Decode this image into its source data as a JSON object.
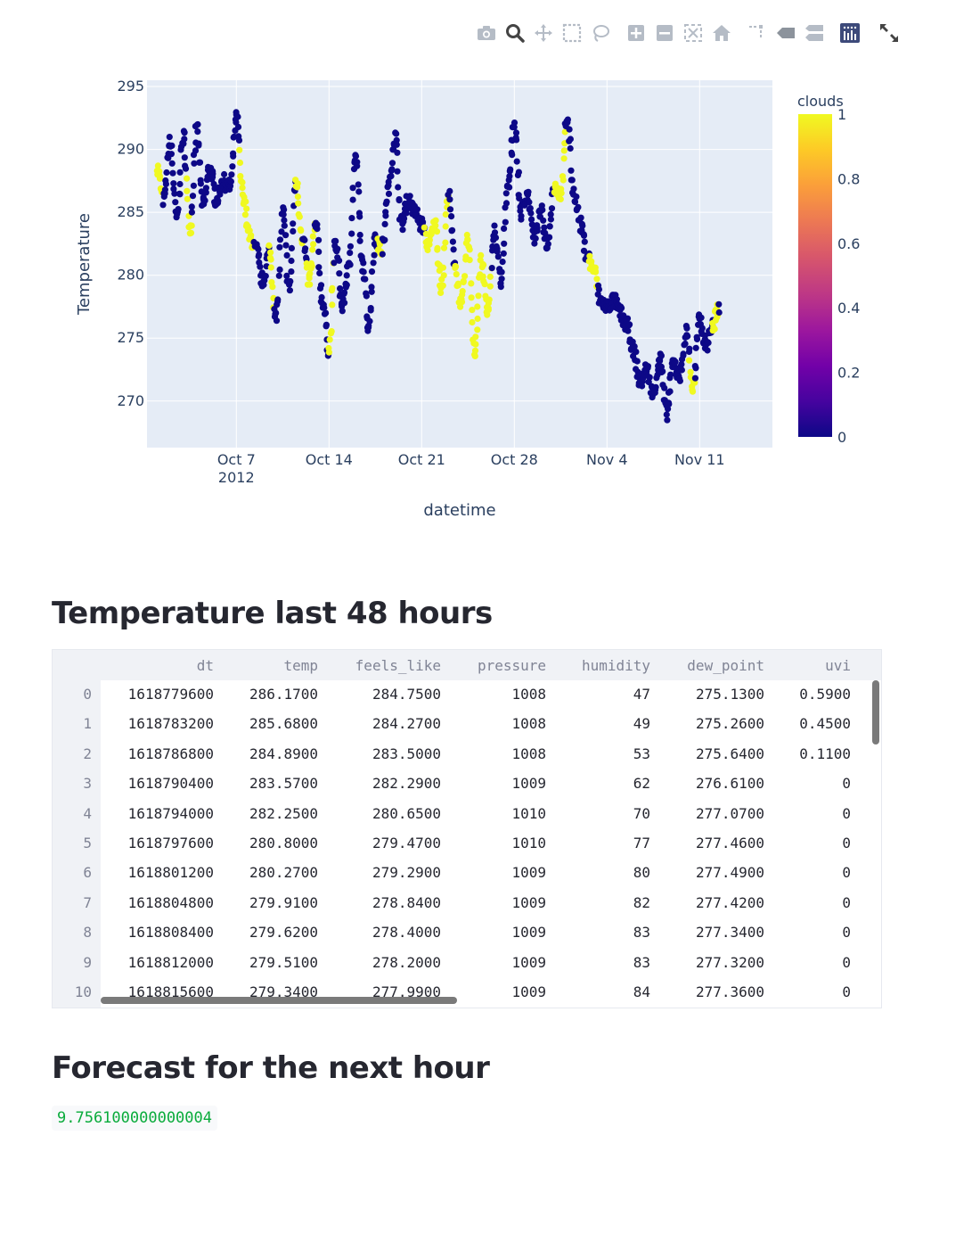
{
  "modebar": {
    "icons": [
      "camera-icon",
      "zoom-icon",
      "pan-icon",
      "box-select-icon",
      "lasso-icon",
      "zoom-in-icon",
      "zoom-out-icon",
      "autoscale-icon",
      "reset-axes-icon",
      "spike-lines-icon",
      "hover-closest-icon",
      "hover-compare-icon",
      "plotly-logo",
      "fullscreen-icon"
    ]
  },
  "chart_data": {
    "type": "scatter",
    "xlabel": "datetime",
    "ylabel": "Temperature",
    "colorbar_title": "clouds",
    "colorbar_ticks": [
      "0",
      "0.2",
      "0.4",
      "0.6",
      "0.8",
      "1"
    ],
    "x_ticks": [
      {
        "label": "Oct 7",
        "sub": "2012",
        "date": "2012-10-07"
      },
      {
        "label": "Oct 14",
        "sub": "",
        "date": "2012-10-14"
      },
      {
        "label": "Oct 21",
        "sub": "",
        "date": "2012-10-21"
      },
      {
        "label": "Oct 28",
        "sub": "",
        "date": "2012-10-28"
      },
      {
        "label": "Nov 4",
        "sub": "",
        "date": "2012-11-04"
      },
      {
        "label": "Nov 11",
        "sub": "",
        "date": "2012-11-11"
      }
    ],
    "y_ticks": [
      270,
      275,
      280,
      285,
      290,
      295
    ],
    "xlim": [
      "2012-09-30T06:00",
      "2012-11-16T12:00"
    ],
    "ylim": [
      266.3,
      295.5
    ],
    "colorscale": "plasma",
    "grid": true,
    "legend": "right",
    "profile": [
      [
        "2012-10-01T00:00",
        288.6
      ],
      [
        "2012-10-01T12:00",
        286.0
      ],
      [
        "2012-10-02T00:00",
        290.5
      ],
      [
        "2012-10-02T12:00",
        284.5
      ],
      [
        "2012-10-03T00:00",
        291.0
      ],
      [
        "2012-10-03T12:00",
        283.8
      ],
      [
        "2012-10-04T00:00",
        291.5
      ],
      [
        "2012-10-04T12:00",
        285.5
      ],
      [
        "2012-10-05T00:00",
        288.5
      ],
      [
        "2012-10-05T12:00",
        286.0
      ],
      [
        "2012-10-06T00:00",
        287.5
      ],
      [
        "2012-10-06T12:00",
        287.0
      ],
      [
        "2012-10-07T00:00",
        292.5
      ],
      [
        "2012-10-07T12:00",
        286.5
      ],
      [
        "2012-10-08T00:00",
        283.0
      ],
      [
        "2012-10-08T12:00",
        282.0
      ],
      [
        "2012-10-09T00:00",
        279.5
      ],
      [
        "2012-10-09T12:00",
        282.0
      ],
      [
        "2012-10-10T00:00",
        276.5
      ],
      [
        "2012-10-10T12:00",
        285.0
      ],
      [
        "2012-10-11T00:00",
        279.0
      ],
      [
        "2012-10-11T12:00",
        287.5
      ],
      [
        "2012-10-12T00:00",
        283.0
      ],
      [
        "2012-10-12T12:00",
        279.5
      ],
      [
        "2012-10-13T00:00",
        284.0
      ],
      [
        "2012-10-13T12:00",
        278.0
      ],
      [
        "2012-10-14T00:00",
        274.0
      ],
      [
        "2012-10-14T12:00",
        282.5
      ],
      [
        "2012-10-15T00:00",
        277.5
      ],
      [
        "2012-10-15T12:00",
        280.5
      ],
      [
        "2012-10-16T00:00",
        289.5
      ],
      [
        "2012-10-16T12:00",
        281.0
      ],
      [
        "2012-10-17T00:00",
        276.0
      ],
      [
        "2012-10-17T12:00",
        283.0
      ],
      [
        "2012-10-18T00:00",
        282.0
      ],
      [
        "2012-10-18T12:00",
        287.0
      ],
      [
        "2012-10-19T00:00",
        291.0
      ],
      [
        "2012-10-19T12:00",
        284.0
      ],
      [
        "2012-10-20T00:00",
        286.0
      ],
      [
        "2012-10-20T12:00",
        285.0
      ],
      [
        "2012-10-21T00:00",
        284.0
      ],
      [
        "2012-10-21T12:00",
        282.5
      ],
      [
        "2012-10-22T00:00",
        284.0
      ],
      [
        "2012-10-22T12:00",
        279.0
      ],
      [
        "2012-10-23T00:00",
        286.5
      ],
      [
        "2012-10-23T12:00",
        281.0
      ],
      [
        "2012-10-24T00:00",
        277.5
      ],
      [
        "2012-10-24T12:00",
        283.0
      ],
      [
        "2012-10-25T00:00",
        274.0
      ],
      [
        "2012-10-25T12:00",
        281.0
      ],
      [
        "2012-10-26T00:00",
        277.0
      ],
      [
        "2012-10-26T12:00",
        283.5
      ],
      [
        "2012-10-27T00:00",
        279.5
      ],
      [
        "2012-10-27T12:00",
        287.0
      ],
      [
        "2012-10-28T00:00",
        292.0
      ],
      [
        "2012-10-28T12:00",
        285.0
      ],
      [
        "2012-10-29T00:00",
        286.5
      ],
      [
        "2012-10-29T12:00",
        283.0
      ],
      [
        "2012-10-30T00:00",
        285.0
      ],
      [
        "2012-10-30T12:00",
        282.5
      ],
      [
        "2012-10-31T00:00",
        287.0
      ],
      [
        "2012-10-31T12:00",
        286.5
      ],
      [
        "2012-11-01T00:00",
        292.5
      ],
      [
        "2012-11-01T12:00",
        286.5
      ],
      [
        "2012-11-02T00:00",
        284.0
      ],
      [
        "2012-11-02T12:00",
        281.5
      ],
      [
        "2012-11-03T00:00",
        280.5
      ],
      [
        "2012-11-03T12:00",
        278.0
      ],
      [
        "2012-11-04T00:00",
        277.5
      ],
      [
        "2012-11-04T12:00",
        278.0
      ],
      [
        "2012-11-05T00:00",
        277.0
      ],
      [
        "2012-11-05T12:00",
        276.0
      ],
      [
        "2012-11-06T00:00",
        274.0
      ],
      [
        "2012-11-06T12:00",
        271.5
      ],
      [
        "2012-11-07T00:00",
        272.5
      ],
      [
        "2012-11-07T12:00",
        270.5
      ],
      [
        "2012-11-08T00:00",
        273.5
      ],
      [
        "2012-11-08T12:00",
        269.0
      ],
      [
        "2012-11-09T00:00",
        273.0
      ],
      [
        "2012-11-09T12:00",
        272.0
      ],
      [
        "2012-11-10T00:00",
        275.5
      ],
      [
        "2012-11-10T12:00",
        271.0
      ],
      [
        "2012-11-11T00:00",
        276.5
      ],
      [
        "2012-11-11T12:00",
        274.5
      ],
      [
        "2012-11-12T00:00",
        276.0
      ],
      [
        "2012-11-12T12:00",
        277.5
      ]
    ],
    "cloudy_windows": [
      [
        "2012-10-01T00:00",
        "2012-10-01T10:00"
      ],
      [
        "2012-10-03T06:00",
        "2012-10-03T14:00"
      ],
      [
        "2012-10-07T06:00",
        "2012-10-08T08:00"
      ],
      [
        "2012-10-09T12:00",
        "2012-10-09T20:00"
      ],
      [
        "2012-10-11T12:00",
        "2012-10-12T00:00"
      ],
      [
        "2012-10-12T08:00",
        "2012-10-12T22:00"
      ],
      [
        "2012-10-14T00:00",
        "2012-10-14T08:00"
      ],
      [
        "2012-10-17T16:00",
        "2012-10-18T00:00"
      ],
      [
        "2012-10-21T06:00",
        "2012-10-23T00:00"
      ],
      [
        "2012-10-23T12:00",
        "2012-10-26T06:00"
      ],
      [
        "2012-10-31T00:00",
        "2012-10-31T20:00"
      ],
      [
        "2012-11-02T16:00",
        "2012-11-03T06:00"
      ],
      [
        "2012-11-10T06:00",
        "2012-11-10T14:00"
      ],
      [
        "2012-11-12T00:00",
        "2012-11-12T10:00"
      ]
    ]
  },
  "table_section": {
    "heading": "Temperature last 48 hours",
    "columns": [
      "dt",
      "temp",
      "feels_like",
      "pressure",
      "humidity",
      "dew_point",
      "uvi"
    ],
    "rows": [
      [
        "0",
        "1618779600",
        "286.1700",
        "284.7500",
        "1008",
        "47",
        "275.1300",
        "0.5900"
      ],
      [
        "1",
        "1618783200",
        "285.6800",
        "284.2700",
        "1008",
        "49",
        "275.2600",
        "0.4500"
      ],
      [
        "2",
        "1618786800",
        "284.8900",
        "283.5000",
        "1008",
        "53",
        "275.6400",
        "0.1100"
      ],
      [
        "3",
        "1618790400",
        "283.5700",
        "282.2900",
        "1009",
        "62",
        "276.6100",
        "0"
      ],
      [
        "4",
        "1618794000",
        "282.2500",
        "280.6500",
        "1010",
        "70",
        "277.0700",
        "0"
      ],
      [
        "5",
        "1618797600",
        "280.8000",
        "279.4700",
        "1010",
        "77",
        "277.4600",
        "0"
      ],
      [
        "6",
        "1618801200",
        "280.2700",
        "279.2900",
        "1009",
        "80",
        "277.4900",
        "0"
      ],
      [
        "7",
        "1618804800",
        "279.9100",
        "278.8400",
        "1009",
        "82",
        "277.4200",
        "0"
      ],
      [
        "8",
        "1618808400",
        "279.6200",
        "278.4000",
        "1009",
        "83",
        "277.3400",
        "0"
      ],
      [
        "9",
        "1618812000",
        "279.5100",
        "278.2000",
        "1009",
        "83",
        "277.3200",
        "0"
      ],
      [
        "10",
        "1618815600",
        "279.3400",
        "277.9900",
        "1009",
        "84",
        "277.3600",
        "0"
      ]
    ]
  },
  "forecast_section": {
    "heading": "Forecast for the next hour",
    "value": "9.756100000000004"
  }
}
